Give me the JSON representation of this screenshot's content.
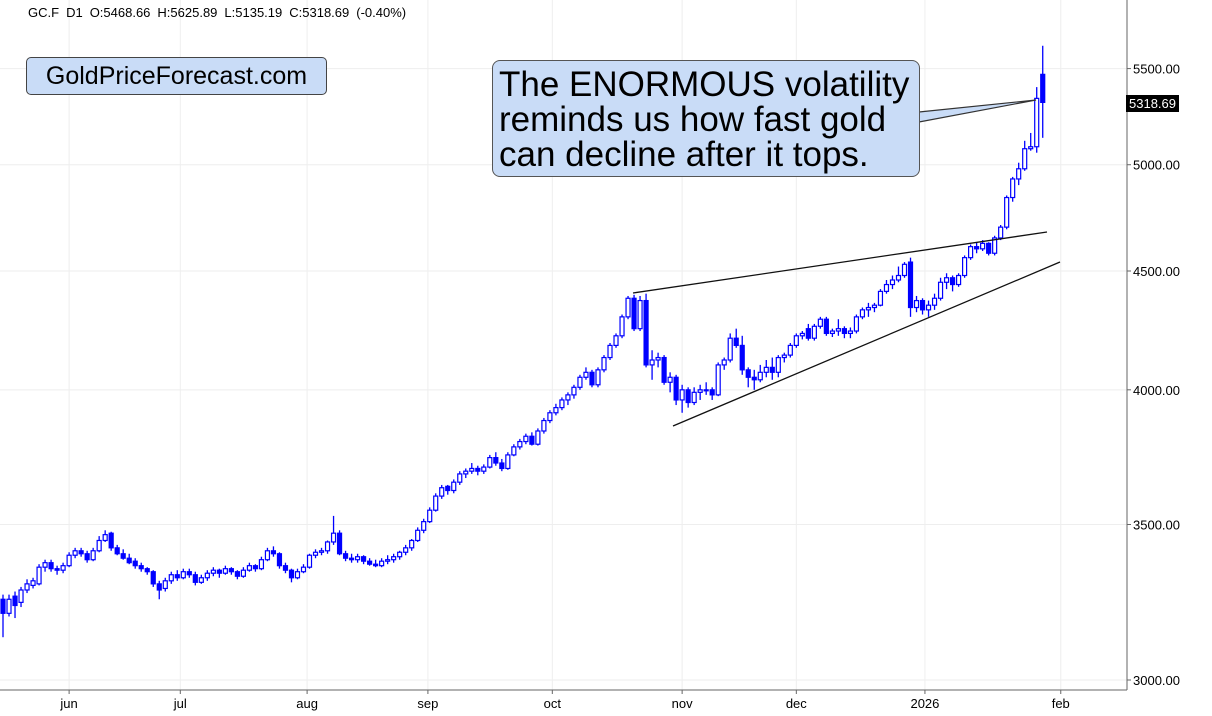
{
  "header": {
    "symbol": "GC.F",
    "timeframe": "D1",
    "open": "O:5468.66",
    "high": "H:5625.89",
    "low": "L:5135.19",
    "close": "C:5318.69",
    "change": "(-0.40%)"
  },
  "logo_text": "GoldPriceForecast.com",
  "callout": {
    "lines": [
      "The ENORMOUS volatility",
      "reminds us how fast gold",
      "can decline after it tops."
    ]
  },
  "colors": {
    "candle": "#0000ff",
    "callout_bg": "#c9dcf7",
    "grid": "#eeeeee"
  },
  "chart_data": {
    "type": "candlestick",
    "title": "GC.F D1",
    "y_scale": "log",
    "ylim": [
      3000,
      5887
    ],
    "last_price_label": "5318.69",
    "y_ticks": [
      {
        "value": 3000,
        "label": "3000.00"
      },
      {
        "value": 3500,
        "label": "3500.00"
      },
      {
        "value": 4000,
        "label": "4000.00"
      },
      {
        "value": 4500,
        "label": "4500.00"
      },
      {
        "value": 5000,
        "label": "5000.00"
      },
      {
        "value": 5500,
        "label": "5500.00"
      }
    ],
    "x_ticks": [
      {
        "label": "jun",
        "index": 11
      },
      {
        "label": "jul",
        "index": 29.5
      },
      {
        "label": "aug",
        "index": 50.6
      },
      {
        "label": "sep",
        "index": 70.7
      },
      {
        "label": "oct",
        "index": 91.4
      },
      {
        "label": "nov",
        "index": 113
      },
      {
        "label": "dec",
        "index": 132
      },
      {
        "label": "2026",
        "index": 153.4
      },
      {
        "label": "feb",
        "index": 176
      }
    ],
    "x_range": [
      -0.5,
      184.5
    ],
    "ohlc": [
      [
        3250,
        3265,
        3130,
        3205
      ],
      [
        3205,
        3265,
        3195,
        3250
      ],
      [
        3260,
        3275,
        3190,
        3230
      ],
      [
        3240,
        3290,
        3225,
        3280
      ],
      [
        3280,
        3315,
        3270,
        3300
      ],
      [
        3295,
        3320,
        3285,
        3310
      ],
      [
        3300,
        3365,
        3295,
        3355
      ],
      [
        3355,
        3380,
        3340,
        3370
      ],
      [
        3370,
        3380,
        3340,
        3350
      ],
      [
        3350,
        3360,
        3330,
        3345
      ],
      [
        3345,
        3370,
        3335,
        3360
      ],
      [
        3360,
        3405,
        3355,
        3395
      ],
      [
        3395,
        3420,
        3385,
        3410
      ],
      [
        3410,
        3420,
        3390,
        3400
      ],
      [
        3400,
        3410,
        3370,
        3380
      ],
      [
        3380,
        3420,
        3375,
        3410
      ],
      [
        3410,
        3460,
        3405,
        3445
      ],
      [
        3445,
        3480,
        3440,
        3465
      ],
      [
        3470,
        3475,
        3410,
        3420
      ],
      [
        3420,
        3430,
        3395,
        3400
      ],
      [
        3400,
        3415,
        3380,
        3385
      ],
      [
        3385,
        3400,
        3365,
        3370
      ],
      [
        3375,
        3385,
        3350,
        3360
      ],
      [
        3360,
        3370,
        3340,
        3350
      ],
      [
        3350,
        3355,
        3330,
        3340
      ],
      [
        3340,
        3345,
        3290,
        3300
      ],
      [
        3300,
        3310,
        3250,
        3280
      ],
      [
        3285,
        3320,
        3275,
        3310
      ],
      [
        3310,
        3340,
        3300,
        3330
      ],
      [
        3330,
        3345,
        3310,
        3320
      ],
      [
        3320,
        3350,
        3315,
        3340
      ],
      [
        3340,
        3350,
        3320,
        3330
      ],
      [
        3330,
        3340,
        3295,
        3305
      ],
      [
        3305,
        3330,
        3300,
        3320
      ],
      [
        3320,
        3345,
        3310,
        3335
      ],
      [
        3335,
        3355,
        3325,
        3345
      ],
      [
        3345,
        3350,
        3320,
        3335
      ],
      [
        3335,
        3360,
        3330,
        3350
      ],
      [
        3350,
        3355,
        3330,
        3340
      ],
      [
        3340,
        3345,
        3315,
        3325
      ],
      [
        3325,
        3355,
        3320,
        3345
      ],
      [
        3345,
        3370,
        3340,
        3360
      ],
      [
        3360,
        3365,
        3340,
        3350
      ],
      [
        3350,
        3390,
        3345,
        3380
      ],
      [
        3380,
        3420,
        3375,
        3410
      ],
      [
        3410,
        3425,
        3390,
        3400
      ],
      [
        3400,
        3405,
        3350,
        3360
      ],
      [
        3360,
        3370,
        3335,
        3345
      ],
      [
        3345,
        3350,
        3305,
        3320
      ],
      [
        3320,
        3350,
        3315,
        3340
      ],
      [
        3340,
        3365,
        3335,
        3355
      ],
      [
        3355,
        3400,
        3350,
        3395
      ],
      [
        3395,
        3415,
        3385,
        3405
      ],
      [
        3405,
        3420,
        3395,
        3410
      ],
      [
        3410,
        3445,
        3400,
        3440
      ],
      [
        3440,
        3530,
        3430,
        3470
      ],
      [
        3470,
        3480,
        3395,
        3400
      ],
      [
        3400,
        3410,
        3375,
        3385
      ],
      [
        3385,
        3400,
        3370,
        3380
      ],
      [
        3380,
        3400,
        3370,
        3390
      ],
      [
        3390,
        3395,
        3365,
        3375
      ],
      [
        3375,
        3385,
        3360,
        3365
      ],
      [
        3365,
        3380,
        3355,
        3360
      ],
      [
        3360,
        3385,
        3355,
        3375
      ],
      [
        3375,
        3395,
        3365,
        3380
      ],
      [
        3380,
        3400,
        3370,
        3390
      ],
      [
        3390,
        3410,
        3380,
        3405
      ],
      [
        3405,
        3430,
        3395,
        3420
      ],
      [
        3420,
        3450,
        3410,
        3445
      ],
      [
        3445,
        3490,
        3440,
        3480
      ],
      [
        3480,
        3520,
        3470,
        3510
      ],
      [
        3510,
        3560,
        3505,
        3550
      ],
      [
        3550,
        3610,
        3545,
        3600
      ],
      [
        3600,
        3640,
        3590,
        3630
      ],
      [
        3635,
        3640,
        3605,
        3620
      ],
      [
        3620,
        3660,
        3610,
        3650
      ],
      [
        3650,
        3690,
        3640,
        3680
      ],
      [
        3680,
        3700,
        3665,
        3690
      ],
      [
        3690,
        3720,
        3680,
        3700
      ],
      [
        3700,
        3710,
        3675,
        3690
      ],
      [
        3690,
        3715,
        3680,
        3705
      ],
      [
        3705,
        3750,
        3700,
        3740
      ],
      [
        3740,
        3760,
        3710,
        3720
      ],
      [
        3720,
        3735,
        3690,
        3700
      ],
      [
        3700,
        3760,
        3695,
        3750
      ],
      [
        3750,
        3790,
        3745,
        3780
      ],
      [
        3780,
        3810,
        3770,
        3800
      ],
      [
        3800,
        3830,
        3790,
        3820
      ],
      [
        3820,
        3835,
        3785,
        3790
      ],
      [
        3790,
        3850,
        3785,
        3840
      ],
      [
        3840,
        3890,
        3830,
        3880
      ],
      [
        3880,
        3920,
        3870,
        3910
      ],
      [
        3910,
        3945,
        3900,
        3930
      ],
      [
        3930,
        3970,
        3920,
        3960
      ],
      [
        3960,
        3990,
        3940,
        3980
      ],
      [
        3980,
        4020,
        3965,
        4010
      ],
      [
        4010,
        4060,
        4000,
        4050
      ],
      [
        4050,
        4090,
        4040,
        4070
      ],
      [
        4070,
        4080,
        4010,
        4020
      ],
      [
        4020,
        4090,
        4010,
        4080
      ],
      [
        4080,
        4140,
        4070,
        4130
      ],
      [
        4130,
        4190,
        4120,
        4180
      ],
      [
        4180,
        4230,
        4170,
        4220
      ],
      [
        4220,
        4310,
        4210,
        4300
      ],
      [
        4300,
        4390,
        4290,
        4380
      ],
      [
        4380,
        4395,
        4240,
        4250
      ],
      [
        4250,
        4390,
        4240,
        4370
      ],
      [
        4370,
        4400,
        4090,
        4100
      ],
      [
        4100,
        4160,
        4040,
        4120
      ],
      [
        4120,
        4150,
        4090,
        4130
      ],
      [
        4130,
        4140,
        4020,
        4030
      ],
      [
        4030,
        4070,
        3990,
        4050
      ],
      [
        4050,
        4060,
        3940,
        3960
      ],
      [
        3960,
        4020,
        3910,
        4000
      ],
      [
        4000,
        4010,
        3930,
        3950
      ],
      [
        3950,
        4010,
        3940,
        3990
      ],
      [
        3990,
        4020,
        3960,
        4000
      ],
      [
        4000,
        4030,
        3980,
        4000
      ],
      [
        4000,
        4010,
        3960,
        3980
      ],
      [
        3980,
        4110,
        3975,
        4100
      ],
      [
        4100,
        4130,
        4080,
        4120
      ],
      [
        4120,
        4230,
        4110,
        4210
      ],
      [
        4210,
        4250,
        4170,
        4180
      ],
      [
        4180,
        4220,
        4060,
        4080
      ],
      [
        4080,
        4090,
        4010,
        4050
      ],
      [
        4050,
        4080,
        4000,
        4040
      ],
      [
        4040,
        4100,
        4030,
        4070
      ],
      [
        4070,
        4120,
        4050,
        4090
      ],
      [
        4090,
        4130,
        4040,
        4070
      ],
      [
        4070,
        4140,
        4050,
        4130
      ],
      [
        4130,
        4150,
        4110,
        4140
      ],
      [
        4140,
        4190,
        4130,
        4180
      ],
      [
        4180,
        4230,
        4170,
        4220
      ],
      [
        4220,
        4240,
        4205,
        4230
      ],
      [
        4250,
        4270,
        4200,
        4210
      ],
      [
        4210,
        4270,
        4200,
        4260
      ],
      [
        4260,
        4300,
        4250,
        4290
      ],
      [
        4290,
        4300,
        4220,
        4230
      ],
      [
        4230,
        4250,
        4215,
        4240
      ],
      [
        4240,
        4290,
        4220,
        4250
      ],
      [
        4250,
        4260,
        4210,
        4230
      ],
      [
        4230,
        4255,
        4210,
        4240
      ],
      [
        4240,
        4310,
        4230,
        4300
      ],
      [
        4300,
        4340,
        4290,
        4330
      ],
      [
        4330,
        4360,
        4300,
        4340
      ],
      [
        4340,
        4360,
        4320,
        4350
      ],
      [
        4350,
        4420,
        4345,
        4410
      ],
      [
        4410,
        4460,
        4400,
        4440
      ],
      [
        4440,
        4480,
        4420,
        4460
      ],
      [
        4460,
        4520,
        4450,
        4480
      ],
      [
        4480,
        4540,
        4470,
        4530
      ],
      [
        4540,
        4560,
        4300,
        4340
      ],
      [
        4340,
        4390,
        4320,
        4370
      ],
      [
        4370,
        4380,
        4310,
        4330
      ],
      [
        4330,
        4370,
        4300,
        4350
      ],
      [
        4350,
        4400,
        4330,
        4380
      ],
      [
        4380,
        4470,
        4370,
        4450
      ],
      [
        4450,
        4490,
        4420,
        4470
      ],
      [
        4470,
        4480,
        4410,
        4440
      ],
      [
        4440,
        4490,
        4430,
        4480
      ],
      [
        4480,
        4570,
        4470,
        4560
      ],
      [
        4560,
        4620,
        4550,
        4610
      ],
      [
        4610,
        4630,
        4580,
        4600
      ],
      [
        4600,
        4640,
        4590,
        4625
      ],
      [
        4625,
        4630,
        4570,
        4580
      ],
      [
        4580,
        4660,
        4570,
        4650
      ],
      [
        4650,
        4710,
        4640,
        4700
      ],
      [
        4700,
        4850,
        4690,
        4840
      ],
      [
        4840,
        4940,
        4820,
        4930
      ],
      [
        4930,
        5010,
        4900,
        4980
      ],
      [
        4980,
        5120,
        4970,
        5080
      ],
      [
        5080,
        5160,
        5070,
        5090
      ],
      [
        5090,
        5400,
        5060,
        5340
      ],
      [
        5468.66,
        5625.89,
        5135.19,
        5318.69
      ]
    ]
  }
}
